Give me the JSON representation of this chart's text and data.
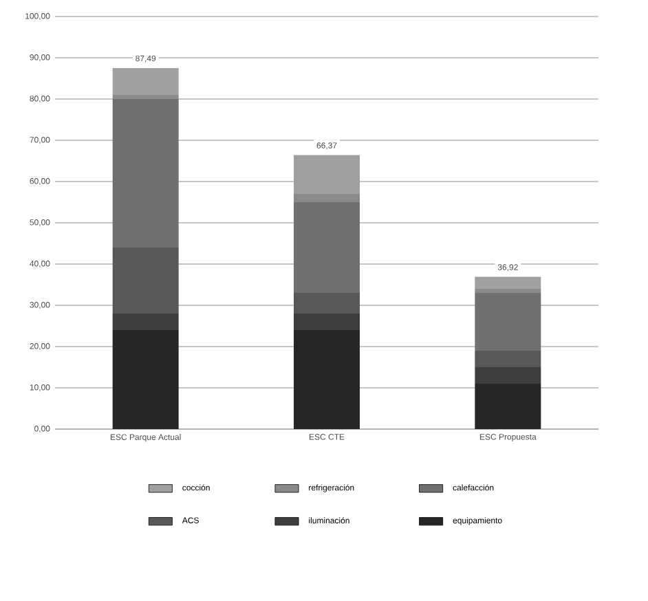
{
  "chart_data": {
    "type": "bar",
    "stacked": true,
    "categories": [
      "ESC Parque Actual",
      "ESC CTE",
      "ESC Propuesta"
    ],
    "series": [
      {
        "name": "equipamiento",
        "color": "#262626",
        "values": [
          24,
          24,
          11
        ]
      },
      {
        "name": "iluminación",
        "color": "#3e3e3e",
        "values": [
          4,
          4,
          4
        ]
      },
      {
        "name": "ACS",
        "color": "#585858",
        "values": [
          16,
          5,
          4
        ]
      },
      {
        "name": "calefacción",
        "color": "#707070",
        "values": [
          36,
          22,
          14
        ]
      },
      {
        "name": "refrigeración",
        "color": "#8a8a8a",
        "values": [
          1,
          2,
          1
        ]
      },
      {
        "name": "cocción",
        "color": "#a0a0a0",
        "values": [
          6.5,
          9.4,
          2.9
        ]
      }
    ],
    "totals": [
      "87,49",
      "66,37",
      "36,92"
    ],
    "ylim": [
      0,
      100
    ],
    "yticks": [
      {
        "value": 0,
        "label": "0,00"
      },
      {
        "value": 10,
        "label": "10,00"
      },
      {
        "value": 20,
        "label": "20,00"
      },
      {
        "value": 30,
        "label": "30,00"
      },
      {
        "value": 40,
        "label": "40,00"
      },
      {
        "value": 50,
        "label": "50,00"
      },
      {
        "value": 60,
        "label": "60,00"
      },
      {
        "value": 70,
        "label": "70,00"
      },
      {
        "value": 80,
        "label": "80,00"
      },
      {
        "value": 90,
        "label": "90,00"
      },
      {
        "value": 100,
        "label": "100,00"
      }
    ],
    "grid": "y",
    "legend": "bottom"
  }
}
